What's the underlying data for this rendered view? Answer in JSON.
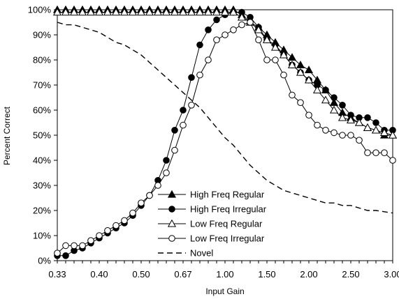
{
  "chart_data": {
    "type": "line",
    "xlabel": "Input Gain",
    "ylabel": "Percent Correct",
    "x_tick_labels": [
      "0.33",
      "0.40",
      "0.50",
      "0.67",
      "1.00",
      "1.50",
      "2.00",
      "2.50",
      "3.00"
    ],
    "y_tick_labels": [
      "0%",
      "10%",
      "20%",
      "30%",
      "40%",
      "50%",
      "60%",
      "70%",
      "80%",
      "90%",
      "100%"
    ],
    "ylim": [
      0,
      100
    ],
    "grid": false,
    "legend_position": "bottom-center",
    "x_point_count": 41,
    "series": [
      {
        "name": "High Freq Regular",
        "marker": "filled-triangle",
        "line_style": "solid",
        "values": [
          100,
          100,
          100,
          100,
          100,
          100,
          100,
          100,
          100,
          100,
          100,
          100,
          100,
          100,
          100,
          100,
          100,
          100,
          100,
          100,
          100,
          100,
          98,
          95,
          93,
          90,
          87,
          84,
          81,
          78,
          76,
          72,
          68,
          63,
          59,
          57,
          55,
          53,
          52,
          50,
          50
        ]
      },
      {
        "name": "High Freq Irregular",
        "marker": "filled-circle",
        "line_style": "solid",
        "values": [
          2,
          2,
          4,
          5,
          7,
          9,
          11,
          13,
          15,
          18,
          22,
          26,
          32,
          40,
          52,
          60,
          73,
          86,
          92,
          96,
          98,
          99,
          99,
          97,
          93,
          88,
          86,
          82,
          78,
          75,
          72,
          70,
          68,
          65,
          62,
          58,
          57,
          57,
          55,
          52,
          52
        ]
      },
      {
        "name": "Low Freq Regular",
        "marker": "open-triangle",
        "line_style": "solid",
        "values": [
          99,
          99,
          99,
          99,
          99,
          99,
          99,
          99,
          99,
          99,
          99,
          99,
          99,
          99,
          99,
          99,
          99,
          99,
          99,
          99,
          99,
          99,
          97,
          95,
          92,
          88,
          85,
          82,
          78,
          75,
          72,
          68,
          64,
          60,
          57,
          56,
          55,
          53,
          52,
          51,
          50
        ]
      },
      {
        "name": "Low Freq Irregular",
        "marker": "open-circle",
        "line_style": "solid",
        "values": [
          3,
          6,
          6,
          6,
          8,
          10,
          12,
          14,
          16,
          19,
          23,
          26,
          30,
          35,
          44,
          54,
          62,
          74,
          80,
          88,
          90,
          92,
          94,
          95,
          88,
          80,
          80,
          74,
          66,
          63,
          58,
          54,
          52,
          51,
          50,
          50,
          48,
          43,
          43,
          43,
          40
        ]
      },
      {
        "name": "Novel",
        "marker": "none",
        "line_style": "dashed",
        "values": [
          95,
          94,
          94,
          93,
          92,
          91,
          89,
          87,
          86,
          84,
          82,
          79,
          76,
          73,
          70,
          67,
          64,
          61,
          57,
          53,
          49,
          46,
          42,
          38,
          35,
          32,
          30,
          28,
          27,
          26,
          25,
          24,
          23,
          23,
          22,
          22,
          21,
          20,
          20,
          19.5,
          19
        ]
      }
    ]
  }
}
